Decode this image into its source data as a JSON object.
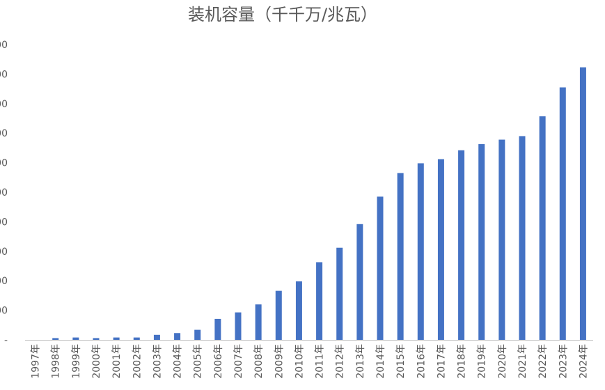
{
  "chart_data": {
    "type": "bar",
    "title": "装机容量（千千万/兆瓦）",
    "xlabel": "",
    "ylabel": "",
    "y_tick_suffix": "00",
    "color": "#4472C4",
    "grid": false,
    "categories": [
      "1997年",
      "1998年",
      "1999年",
      "2000年",
      "2001年",
      "2002年",
      "2003年",
      "2004年",
      "2005年",
      "2006年",
      "2007年",
      "2008年",
      "2009年",
      "2010年",
      "2011年",
      "2012年",
      "2013年",
      "2014年",
      "2015年",
      "2016年",
      "2017年",
      "2018年",
      "2019年",
      "2020年",
      "2021年",
      "2022年",
      "2023年",
      "2024年"
    ],
    "values": [
      0,
      0.6,
      0.8,
      0.6,
      0.8,
      0.8,
      1.7,
      2.3,
      3.4,
      7.1,
      9.3,
      12.0,
      16.6,
      19.8,
      26.3,
      31.2,
      39.2,
      48.5,
      56.5,
      59.8,
      61.2,
      64.2,
      66.3,
      67.8,
      69.0,
      75.7,
      85.5,
      92.3
    ],
    "ylim": [
      0,
      100
    ]
  }
}
